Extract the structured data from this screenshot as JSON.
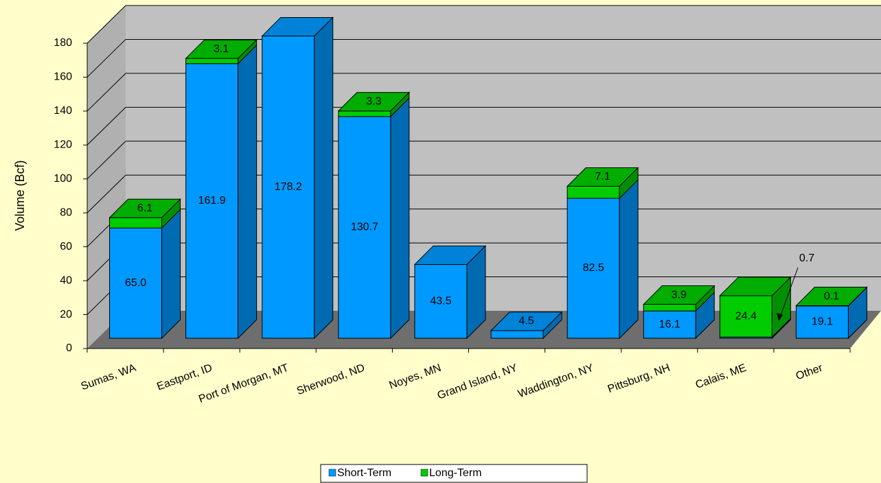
{
  "chart_data": {
    "type": "bar3d_stacked",
    "y_label": "Volume (Bcf)",
    "categories": [
      "Sumas, WA",
      "Eastport, ID",
      "Port of Morgan, MT",
      "Sherwood, ND",
      "Noyes, MN",
      "Grand Island, NY",
      "Waddington, NY",
      "Pittsburg, NH",
      "Calais, ME",
      "Other"
    ],
    "series": [
      {
        "name": "Short-Term",
        "color": "#0099ff",
        "values": [
          65.0,
          161.9,
          178.2,
          130.7,
          43.5,
          4.5,
          82.5,
          16.1,
          0.7,
          19.1
        ],
        "value_labels": [
          "65.0",
          "161.9",
          "178.2",
          "130.7",
          "43.5",
          "4.5",
          "82.5",
          "16.1",
          "0.7",
          "19.1"
        ]
      },
      {
        "name": "Long-Term",
        "color": "#00cc00",
        "values": [
          6.1,
          3.1,
          null,
          3.3,
          null,
          null,
          7.1,
          3.9,
          24.4,
          0.1
        ]
      }
    ],
    "ylim": [
      0,
      180
    ],
    "yticks": [
      0,
      20,
      40,
      60,
      80,
      100,
      120,
      140,
      160,
      180
    ],
    "grid": true,
    "legend": "bottom"
  }
}
